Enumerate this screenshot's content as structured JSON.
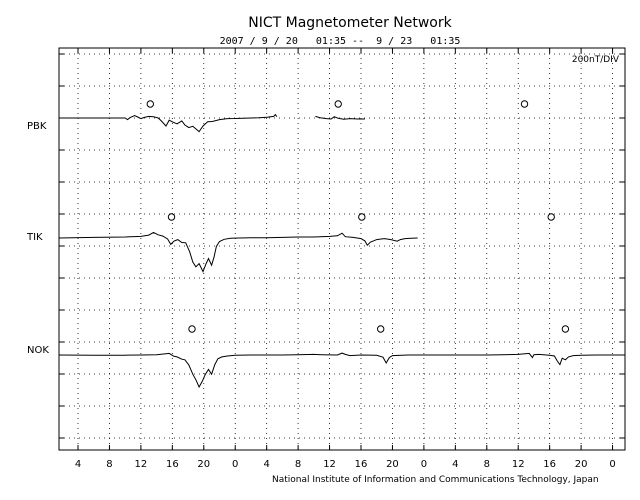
{
  "chart_data": {
    "type": "line",
    "title": "NICT Magnetometer Network",
    "subtitle": "2007 / 9 / 20   01:35 --  9 / 23   01:35",
    "scale_label": "200nT/DIV",
    "footer": "National Institute of Information and Communications Technology, Japan",
    "xlabel": "",
    "ylabel": "",
    "x_unit": "hours since 2007-09-20 00:00 (tick labels show hour of day)",
    "xlim": [
      1.583,
      73.583
    ],
    "x_ticks": [
      4,
      8,
      12,
      16,
      20,
      24,
      28,
      32,
      36,
      40,
      44,
      48,
      52,
      56,
      60,
      64,
      68,
      72
    ],
    "x_tick_labels": [
      "4",
      "8",
      "12",
      "16",
      "20",
      "0",
      "4",
      "8",
      "12",
      "16",
      "20",
      "0",
      "4",
      "8",
      "12",
      "16",
      "20",
      "0"
    ],
    "grid": true,
    "stations": [
      "PBK",
      "TIK",
      "NOK"
    ],
    "series_units": "nT, relative to each station's baseline trace",
    "series": [
      {
        "name": "PBK",
        "segments": [
          [
            [
              1.6,
              0
            ],
            [
              10,
              0
            ],
            [
              10.3,
              -10
            ],
            [
              10.6,
              2
            ],
            [
              11.2,
              15
            ],
            [
              11.6,
              6
            ],
            [
              12,
              -4
            ],
            [
              12.4,
              3
            ],
            [
              13,
              10
            ],
            [
              13.6,
              8
            ],
            [
              14.2,
              0
            ],
            [
              14.6,
              -18
            ],
            [
              15.2,
              -50
            ],
            [
              15.6,
              -14
            ],
            [
              16.1,
              -26
            ],
            [
              16.6,
              -36
            ],
            [
              17.2,
              -18
            ],
            [
              17.6,
              -44
            ],
            [
              18.1,
              -60
            ],
            [
              18.6,
              -52
            ],
            [
              19,
              -68
            ],
            [
              19.4,
              -85
            ],
            [
              19.9,
              -50
            ],
            [
              20.5,
              -24
            ],
            [
              21.1,
              -22
            ],
            [
              22,
              -10
            ],
            [
              23,
              -4
            ],
            [
              24,
              -3
            ],
            [
              25,
              -1
            ],
            [
              26,
              0
            ],
            [
              27,
              2
            ],
            [
              28,
              5
            ],
            [
              28.9,
              10
            ],
            [
              29.1,
              22
            ],
            [
              29.3,
              8
            ]
          ],
          [
            [
              34.2,
              10
            ],
            [
              34.8,
              2
            ],
            [
              35.6,
              -4
            ],
            [
              36.2,
              -6
            ],
            [
              36.6,
              8
            ],
            [
              37.1,
              -2
            ],
            [
              37.8,
              -8
            ],
            [
              38.6,
              -4
            ],
            [
              39.6,
              -6
            ],
            [
              40.5,
              -6
            ]
          ]
        ],
        "markers": [
          13.2,
          37.1,
          60.8
        ]
      },
      {
        "name": "TIK",
        "segments": [
          [
            [
              1.6,
              0
            ],
            [
              6,
              4
            ],
            [
              10,
              6
            ],
            [
              12,
              10
            ],
            [
              13,
              18
            ],
            [
              13.6,
              35
            ],
            [
              14.2,
              20
            ],
            [
              14.8,
              12
            ],
            [
              15.4,
              -6
            ],
            [
              15.8,
              -40
            ],
            [
              16.2,
              -20
            ],
            [
              16.7,
              -10
            ],
            [
              17.2,
              -28
            ],
            [
              17.7,
              -30
            ],
            [
              18.2,
              -85
            ],
            [
              18.6,
              -150
            ],
            [
              19,
              -180
            ],
            [
              19.4,
              -160
            ],
            [
              19.9,
              -210
            ],
            [
              20.3,
              -160
            ],
            [
              20.6,
              -128
            ],
            [
              21,
              -170
            ],
            [
              21.3,
              -120
            ],
            [
              21.6,
              -52
            ],
            [
              22,
              -22
            ],
            [
              22.6,
              -8
            ],
            [
              23.4,
              -2
            ],
            [
              24.5,
              0
            ],
            [
              26,
              2
            ],
            [
              28,
              2
            ],
            [
              30,
              4
            ],
            [
              32,
              6
            ],
            [
              34,
              6
            ],
            [
              36,
              10
            ],
            [
              37,
              14
            ],
            [
              37.6,
              30
            ],
            [
              38,
              8
            ],
            [
              39,
              4
            ],
            [
              40,
              -4
            ],
            [
              40.5,
              -18
            ],
            [
              40.8,
              -45
            ],
            [
              41.2,
              -26
            ],
            [
              42,
              -10
            ],
            [
              43,
              -4
            ],
            [
              43.8,
              -10
            ],
            [
              44.6,
              -20
            ],
            [
              45,
              -10
            ],
            [
              45.6,
              -4
            ],
            [
              46.4,
              -2
            ],
            [
              47.2,
              0
            ]
          ]
        ],
        "markers": [
          15.9,
          40.1,
          64.2
        ]
      },
      {
        "name": "NOK",
        "segments": [
          [
            [
              1.6,
              0
            ],
            [
              6,
              -1
            ],
            [
              10,
              -1
            ],
            [
              12,
              0
            ],
            [
              14,
              2
            ],
            [
              15.6,
              10
            ],
            [
              16.2,
              -8
            ],
            [
              16.6,
              -12
            ],
            [
              17.2,
              -26
            ],
            [
              17.6,
              -30
            ],
            [
              18.1,
              -62
            ],
            [
              18.6,
              -120
            ],
            [
              19,
              -155
            ],
            [
              19.4,
              -200
            ],
            [
              19.8,
              -165
            ],
            [
              20.2,
              -120
            ],
            [
              20.6,
              -90
            ],
            [
              21,
              -120
            ],
            [
              21.4,
              -60
            ],
            [
              21.8,
              -24
            ],
            [
              22.3,
              -12
            ],
            [
              23,
              -6
            ],
            [
              24,
              -1
            ],
            [
              26,
              0
            ],
            [
              28,
              0
            ],
            [
              30,
              0
            ],
            [
              32,
              2
            ],
            [
              34,
              4
            ],
            [
              35,
              2
            ],
            [
              37,
              0
            ],
            [
              37.6,
              12
            ],
            [
              38,
              4
            ],
            [
              38.6,
              -4
            ],
            [
              40,
              0
            ],
            [
              42,
              -2
            ],
            [
              42.8,
              -14
            ],
            [
              43.2,
              -50
            ],
            [
              43.6,
              -16
            ],
            [
              44,
              -4
            ],
            [
              46,
              0
            ],
            [
              48,
              0
            ],
            [
              50,
              0
            ],
            [
              52,
              0
            ],
            [
              54,
              0
            ],
            [
              56,
              0
            ],
            [
              58,
              2
            ],
            [
              60,
              4
            ],
            [
              61.4,
              10
            ],
            [
              61.8,
              -16
            ],
            [
              62,
              2
            ],
            [
              62.6,
              4
            ],
            [
              64,
              -2
            ],
            [
              64.6,
              -6
            ],
            [
              65,
              -40
            ],
            [
              65.3,
              -60
            ],
            [
              65.6,
              -20
            ],
            [
              66,
              -30
            ],
            [
              66.4,
              -12
            ],
            [
              67,
              -4
            ],
            [
              68,
              -2
            ],
            [
              70,
              0
            ],
            [
              72,
              0
            ],
            [
              73.6,
              0
            ]
          ]
        ],
        "markers": [
          18.5,
          42.5,
          66.0
        ]
      }
    ]
  }
}
